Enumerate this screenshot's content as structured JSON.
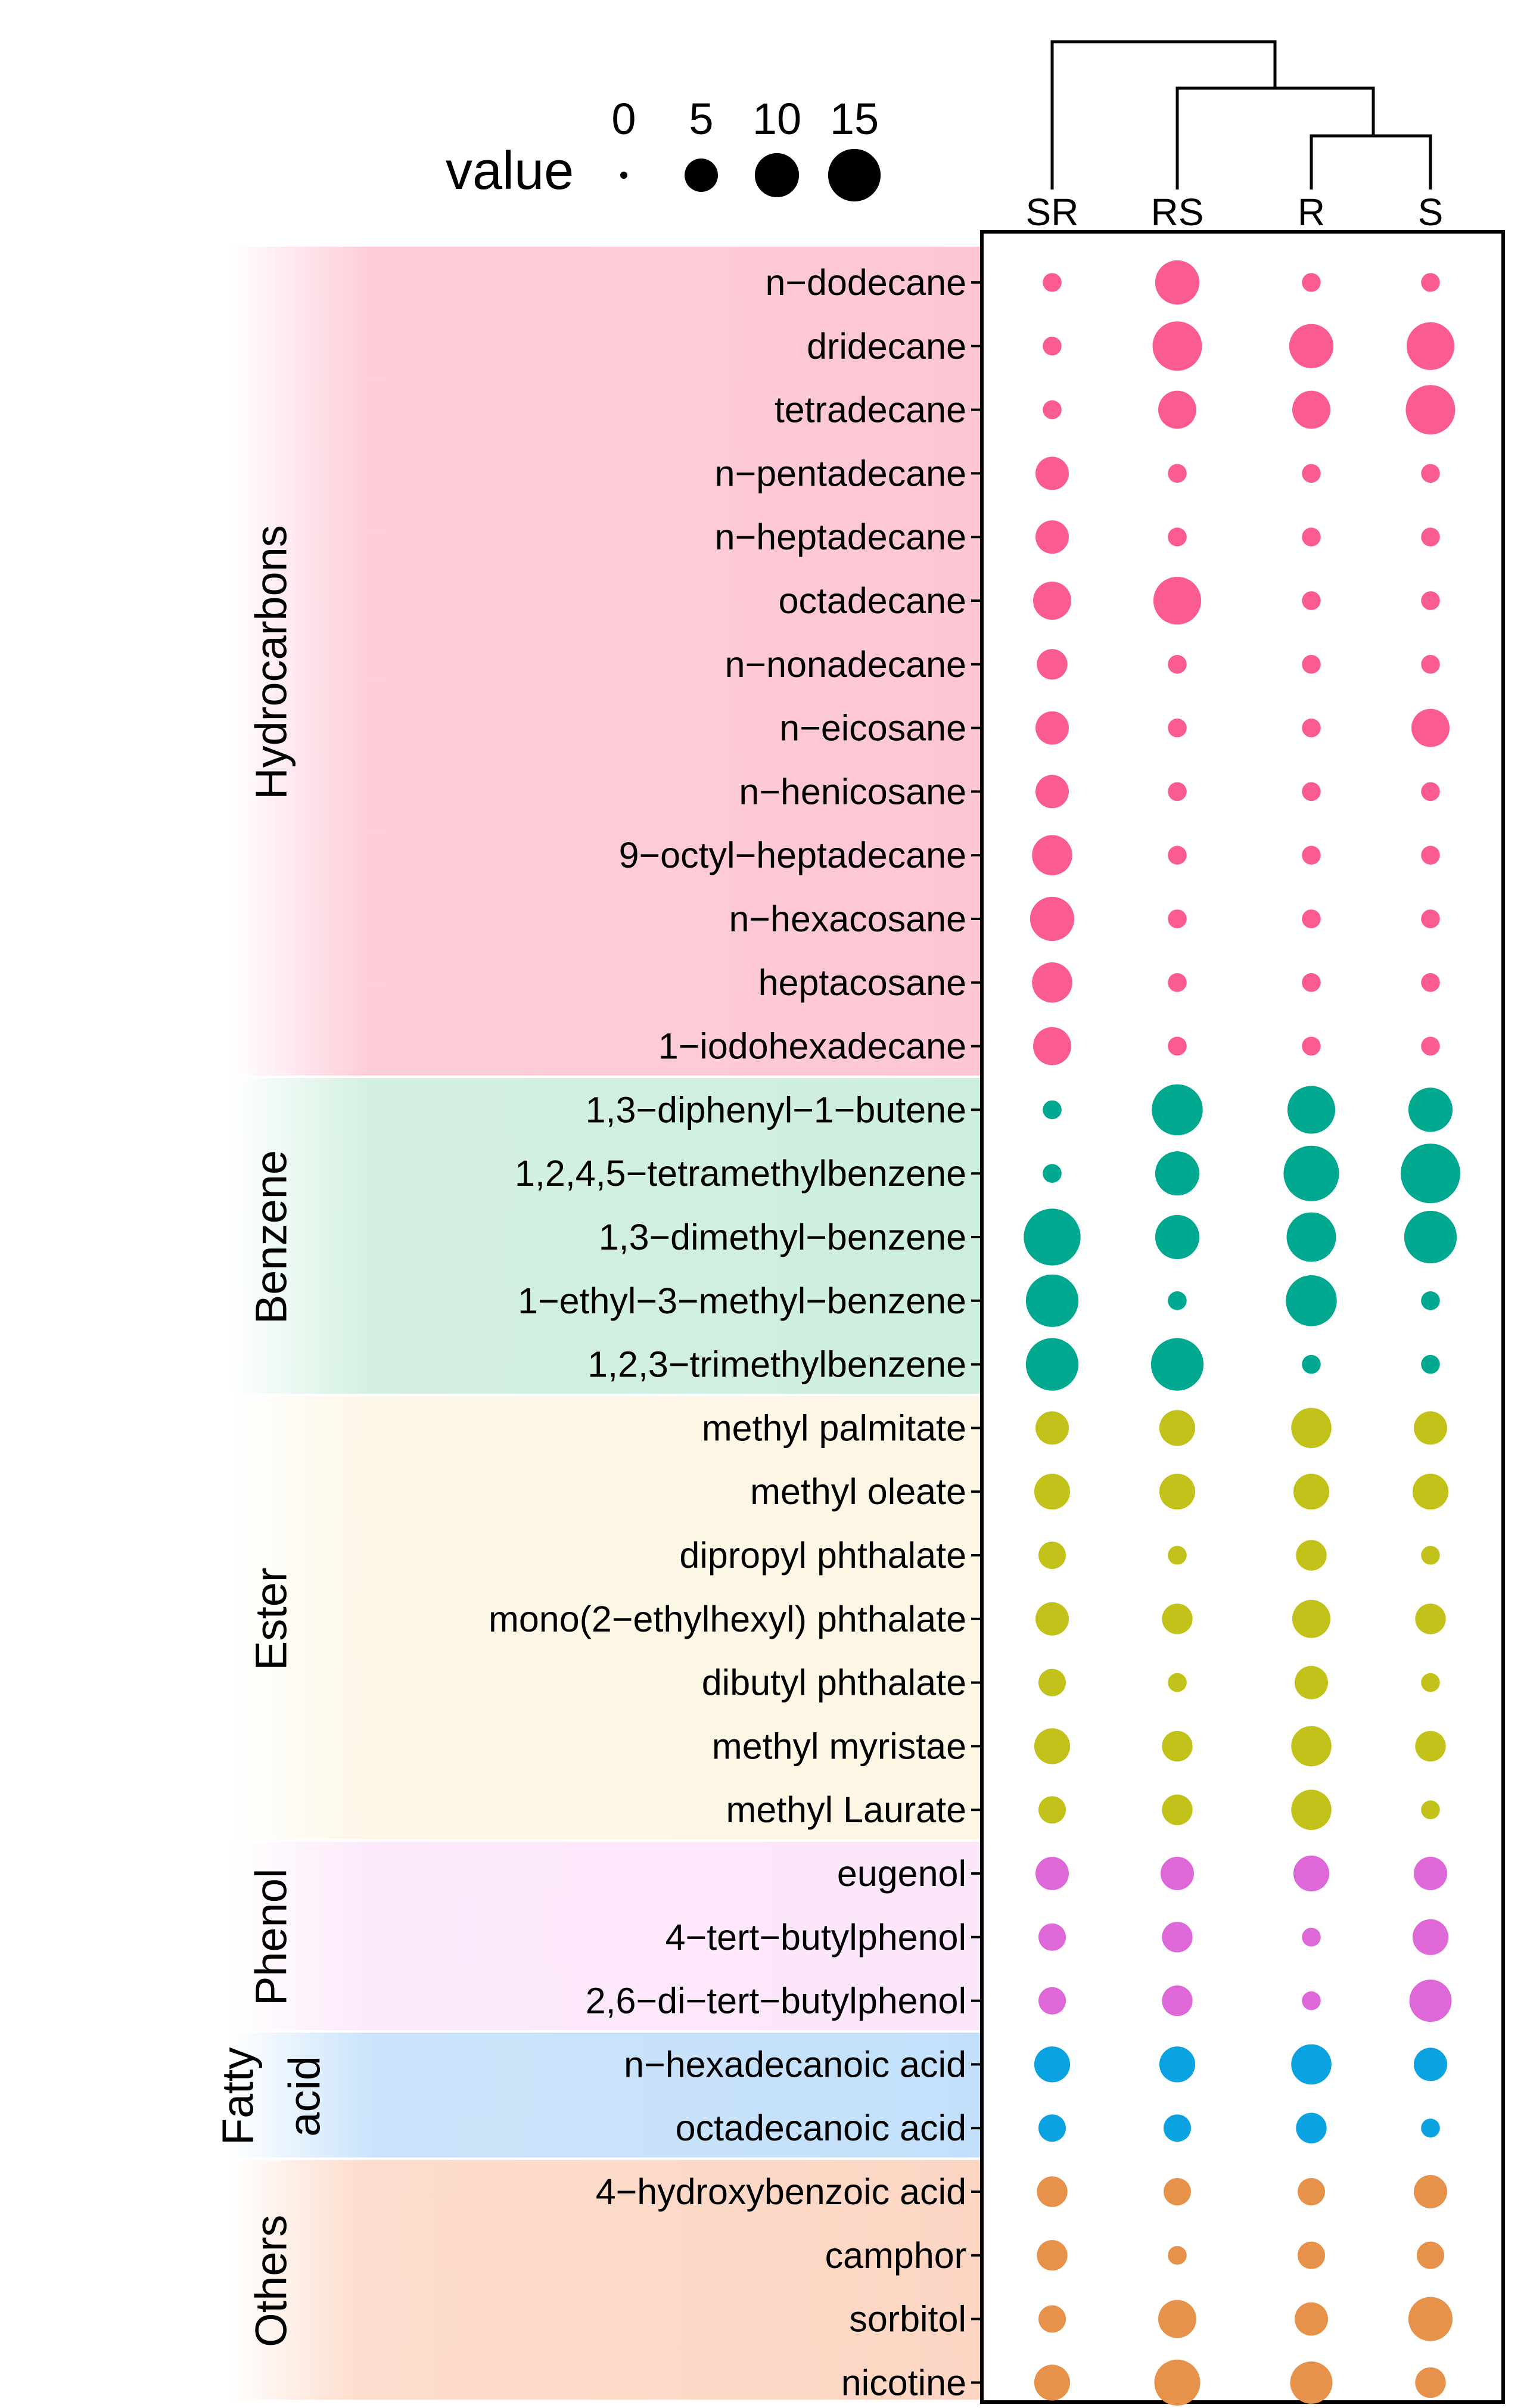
{
  "chart_data": {
    "type": "bubble",
    "legend": {
      "title": "value",
      "sizes": [
        0,
        5,
        10,
        15
      ],
      "labels": [
        "0",
        "5",
        "10",
        "15"
      ]
    },
    "columns": [
      "SR",
      "RS",
      "R",
      "S"
    ],
    "dendrogram": "((SR,(RS,(R,S))))",
    "groups": [
      {
        "name": "Hydrocarbons",
        "label_lines": [
          "Hydrocarbons"
        ],
        "color": "#fb5c8f",
        "bg": "#fdc6d4",
        "rows": [
          {
            "label": "n−dodecane",
            "values": [
              1,
              10,
              1,
              1
            ]
          },
          {
            "label": "dridecane",
            "values": [
              1,
              13,
              10,
              12
            ]
          },
          {
            "label": "tetradecane",
            "values": [
              1,
              7,
              7,
              13
            ]
          },
          {
            "label": "n−pentadecane",
            "values": [
              5,
              1,
              1,
              1
            ]
          },
          {
            "label": "n−heptadecane",
            "values": [
              5,
              1,
              1,
              1
            ]
          },
          {
            "label": "octadecane",
            "values": [
              7,
              12,
              1,
              1
            ]
          },
          {
            "label": "n−nonadecane",
            "values": [
              4,
              1,
              1,
              1
            ]
          },
          {
            "label": "n−eicosane",
            "values": [
              5,
              1,
              1,
              7
            ]
          },
          {
            "label": "n−henicosane",
            "values": [
              5,
              1,
              1,
              1
            ]
          },
          {
            "label": "9−octyl−heptadecane",
            "values": [
              8,
              1,
              1,
              1
            ]
          },
          {
            "label": "n−hexacosane",
            "values": [
              10,
              1,
              1,
              1
            ]
          },
          {
            "label": "heptacosane",
            "values": [
              8,
              1,
              1,
              1
            ]
          },
          {
            "label": "1−iodohexadecane",
            "values": [
              7,
              1,
              1,
              1
            ]
          }
        ]
      },
      {
        "name": "Benzene",
        "label_lines": [
          "Benzene"
        ],
        "color": "#00a88f",
        "bg": "#cdeedd",
        "rows": [
          {
            "label": "1,3−diphenyl−1−butene",
            "values": [
              1,
              14,
              12,
              10
            ]
          },
          {
            "label": "1,2,4,5−tetramethylbenzene",
            "values": [
              1,
              10,
              17,
              20
            ]
          },
          {
            "label": "1,3−dimethyl−benzene",
            "values": [
              18,
              10,
              13,
              15
            ]
          },
          {
            "label": "1−ethyl−3−methyl−benzene",
            "values": [
              15,
              1,
              14,
              1
            ]
          },
          {
            "label": "1,2,3−trimethylbenzene",
            "values": [
              15,
              15,
              1,
              1
            ]
          }
        ]
      },
      {
        "name": "Ester",
        "label_lines": [
          "Ester"
        ],
        "color": "#c3c21a",
        "bg": "#fdf6e4",
        "rows": [
          {
            "label": "methyl palmitate",
            "values": [
              5,
              6,
              8,
              5
            ]
          },
          {
            "label": "methyl oleate",
            "values": [
              6,
              6,
              6,
              6
            ]
          },
          {
            "label": "dipropyl phthalate",
            "values": [
              3,
              1,
              4,
              1
            ]
          },
          {
            "label": "mono(2−ethylhexyl) phthalate",
            "values": [
              5,
              4,
              7,
              4
            ]
          },
          {
            "label": "dibutyl phthalate",
            "values": [
              3,
              1,
              5,
              1
            ]
          },
          {
            "label": "methyl myristae",
            "values": [
              6,
              4,
              8,
              4
            ]
          },
          {
            "label": "methyl Laurate",
            "values": [
              3,
              4,
              8,
              1
            ]
          }
        ]
      },
      {
        "name": "Phenol",
        "label_lines": [
          "Phenol"
        ],
        "color": "#de68d8",
        "bg": "#fce6fa",
        "rows": [
          {
            "label": "eugenol",
            "values": [
              5,
              5,
              6,
              5
            ]
          },
          {
            "label": "4−tert−butylphenol",
            "values": [
              3,
              4,
              1,
              6
            ]
          },
          {
            "label": "2,6−di−tert−butylphenol",
            "values": [
              3,
              4,
              1,
              9
            ]
          }
        ]
      },
      {
        "name": "Fatty acid",
        "label_lines": [
          "Fatty",
          "acid"
        ],
        "color": "#0aa2e0",
        "bg": "#c3e0fa",
        "rows": [
          {
            "label": "n−hexadecanoic acid",
            "values": [
              6,
              6,
              8,
              5
            ]
          },
          {
            "label": "octadecanoic acid",
            "values": [
              3,
              3,
              4,
              1
            ]
          }
        ]
      },
      {
        "name": "Others",
        "label_lines": [
          "Others"
        ],
        "color": "#e7924a",
        "bg": "#fcd6c3",
        "rows": [
          {
            "label": "4−hydroxybenzoic acid",
            "values": [
              4,
              3,
              3,
              5
            ]
          },
          {
            "label": "camphor",
            "values": [
              4,
              1,
              3,
              3
            ]
          },
          {
            "label": "sorbitol",
            "values": [
              3,
              7,
              5,
              10
            ]
          },
          {
            "label": "nicotine",
            "values": [
              6,
              11,
              9,
              4
            ]
          }
        ]
      }
    ]
  }
}
